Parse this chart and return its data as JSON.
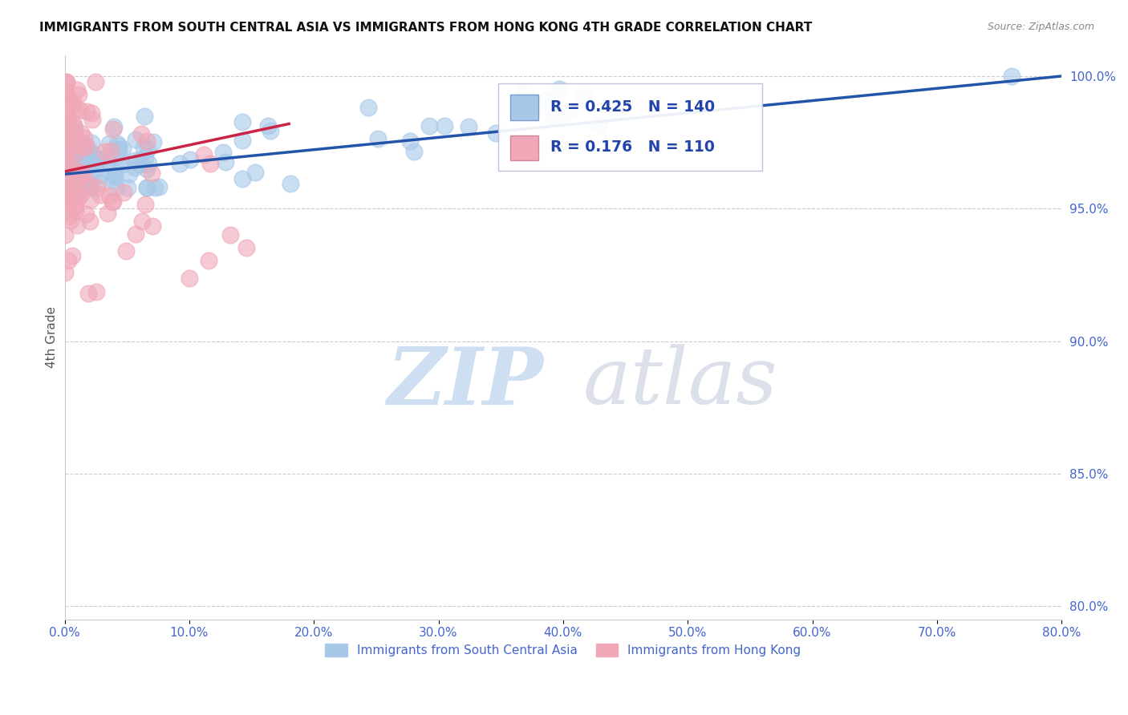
{
  "title": "IMMIGRANTS FROM SOUTH CENTRAL ASIA VS IMMIGRANTS FROM HONG KONG 4TH GRADE CORRELATION CHART",
  "source": "Source: ZipAtlas.com",
  "ylabel": "4th Grade",
  "legend_labels": [
    "Immigrants from South Central Asia",
    "Immigrants from Hong Kong"
  ],
  "blue_color": "#A8C8E8",
  "pink_color": "#F0A8B8",
  "blue_line_color": "#2255AA",
  "pink_line_color": "#CC2244",
  "R_blue": 0.425,
  "N_blue": 140,
  "R_pink": 0.176,
  "N_pink": 110,
  "xlim": [
    0.0,
    0.8
  ],
  "ylim": [
    0.795,
    1.008
  ],
  "xticks": [
    0.0,
    0.1,
    0.2,
    0.3,
    0.4,
    0.5,
    0.6,
    0.7,
    0.8
  ],
  "yticks": [
    0.8,
    0.85,
    0.9,
    0.95,
    1.0
  ],
  "background_color": "#FFFFFF",
  "watermark_zip": "ZIP",
  "watermark_atlas": "atlas",
  "grid_color": "#CCCCCC",
  "tick_color": "#4466CC",
  "legend_box_color": "#AAAACC",
  "legend_text_color": "#2244AA"
}
